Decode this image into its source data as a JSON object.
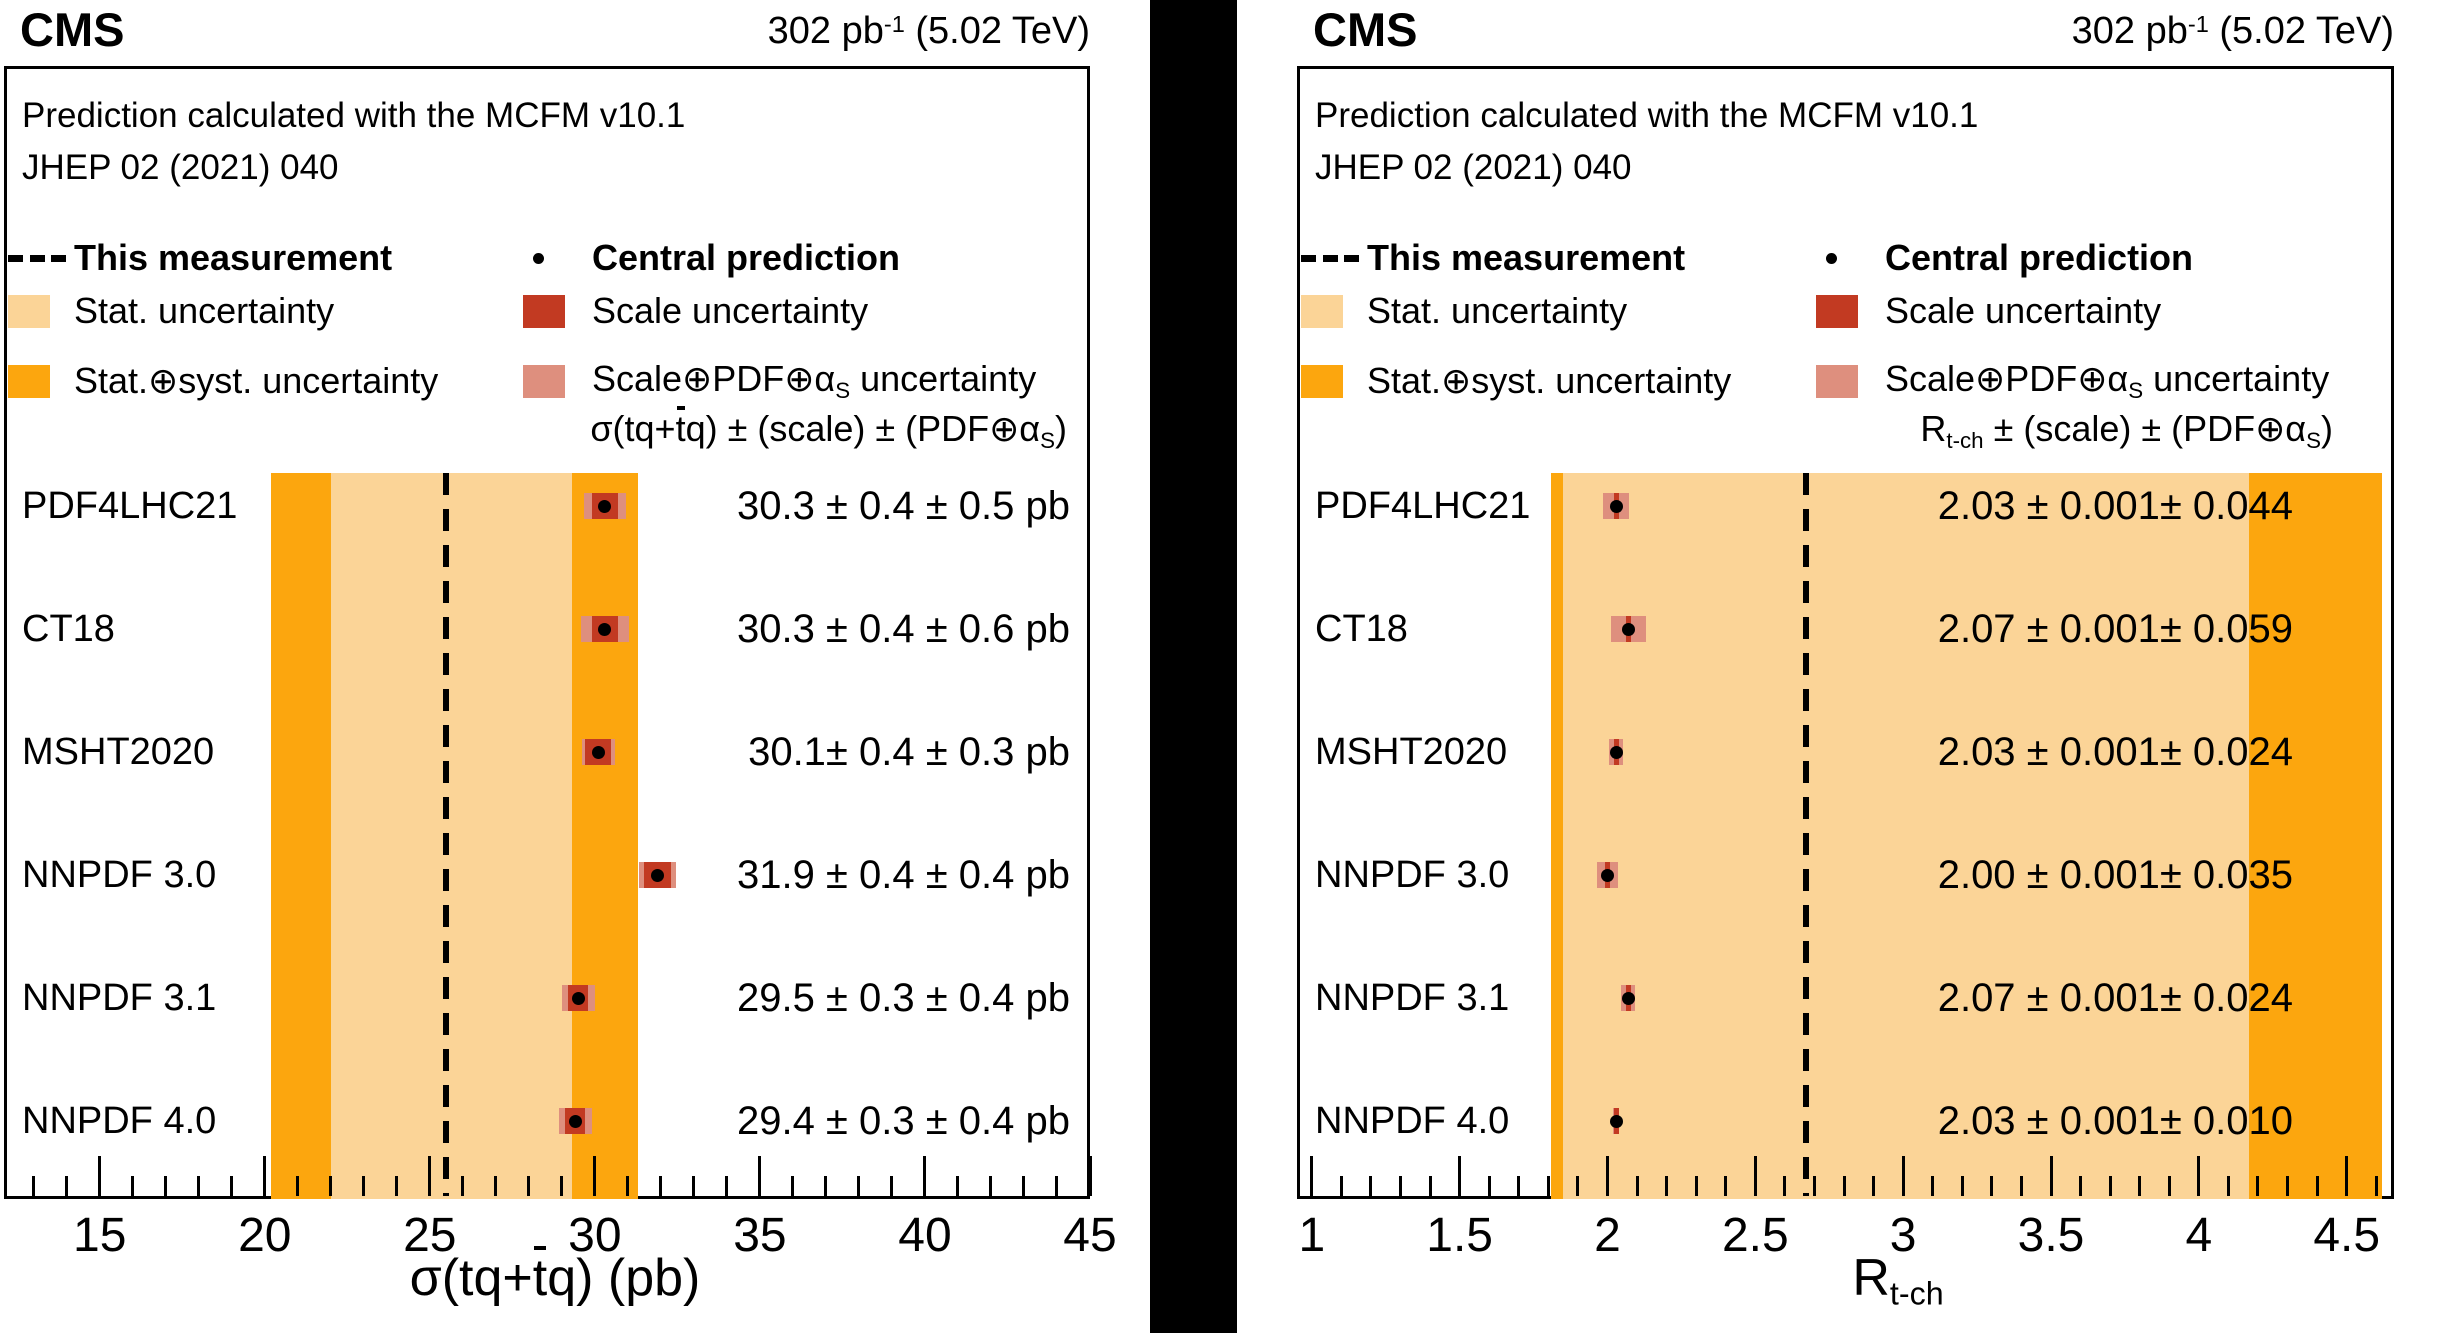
{
  "chart_data": [
    {
      "type": "scatter",
      "panel": "cross-section",
      "cms": "CMS",
      "lumi_parts": [
        {
          "text": "302 pb"
        },
        {
          "text": "-1",
          "style": "sup"
        },
        {
          "text": " (5.02 TeV)"
        }
      ],
      "info_lines": [
        "Prediction calculated with the MCFM v10.1",
        "JHEP 02 (2021) 040"
      ],
      "formula_parts": [
        {
          "text": "σ(tq+"
        },
        {
          "text": "t",
          "style": "overbar"
        },
        {
          "text": "q) ± (scale) ± (PDF⊕α"
        },
        {
          "text": "S",
          "style": "sub"
        },
        {
          "text": ")"
        }
      ],
      "xlabel_parts": [
        {
          "text": "σ(tq+"
        },
        {
          "text": "t",
          "style": "overbar"
        },
        {
          "text": "q) (pb)"
        }
      ],
      "xlim": [
        12.1,
        45
      ],
      "x_major_ticks": [
        15,
        20,
        25,
        30,
        35,
        40,
        45
      ],
      "x_major_labels": [
        "15",
        "20",
        "25",
        "30",
        "35",
        "40",
        "45"
      ],
      "x_minor_step": 1,
      "categories": [
        "PDF4LHC21",
        "CT18",
        "MSHT2020",
        "NNPDF 3.0",
        "NNPDF 3.1",
        "NNPDF 4.0"
      ],
      "predictions": [
        30.3,
        30.3,
        30.1,
        31.9,
        29.5,
        29.4
      ],
      "scale_unc": [
        0.4,
        0.4,
        0.4,
        0.4,
        0.3,
        0.3
      ],
      "pdf_alphas_unc": [
        0.5,
        0.6,
        0.3,
        0.4,
        0.4,
        0.4
      ],
      "value_labels": [
        "30.3 ± 0.4 ± 0.5 pb",
        "30.3 ± 0.4 ± 0.6 pb",
        "30.1± 0.4 ± 0.3 pb",
        "31.9 ± 0.4 ± 0.4 pb",
        "29.5 ± 0.3 ± 0.4 pb",
        "29.4 ± 0.3 ± 0.4 pb"
      ],
      "measurement": {
        "central": 25.5,
        "stat_band": [
          22.0,
          29.3
        ],
        "total_band": [
          20.2,
          31.3
        ]
      }
    },
    {
      "type": "scatter",
      "panel": "ratio",
      "cms": "CMS",
      "lumi_parts": [
        {
          "text": "302 pb"
        },
        {
          "text": "-1",
          "style": "sup"
        },
        {
          "text": " (5.02 TeV)"
        }
      ],
      "info_lines": [
        "Prediction calculated with the MCFM v10.1",
        "JHEP 02 (2021) 040"
      ],
      "formula_parts": [
        {
          "text": "R"
        },
        {
          "text": "t-ch",
          "style": "sub"
        },
        {
          "text": " ± (scale) ± (PDF⊕α"
        },
        {
          "text": "S",
          "style": "sub"
        },
        {
          "text": ")"
        }
      ],
      "xlabel_parts": [
        {
          "text": "R"
        },
        {
          "text": "t-ch",
          "style": "sub"
        }
      ],
      "xlim": [
        0.95,
        4.66
      ],
      "x_major_ticks": [
        1,
        1.5,
        2,
        2.5,
        3,
        3.5,
        4,
        4.5
      ],
      "x_major_labels": [
        "1",
        "1.5",
        "2",
        "2.5",
        "3",
        "3.5",
        "4",
        "4.5"
      ],
      "x_minor_step": 0.1,
      "categories": [
        "PDF4LHC21",
        "CT18",
        "MSHT2020",
        "NNPDF 3.0",
        "NNPDF 3.1",
        "NNPDF 4.0"
      ],
      "predictions": [
        2.03,
        2.07,
        2.03,
        2.0,
        2.07,
        2.03
      ],
      "scale_unc": [
        0.001,
        0.001,
        0.001,
        0.001,
        0.001,
        0.001
      ],
      "pdf_alphas_unc": [
        0.044,
        0.059,
        0.024,
        0.035,
        0.024,
        0.01
      ],
      "value_labels": [
        "2.03 ± 0.001± 0.044",
        "2.07 ± 0.001± 0.059",
        "2.03 ± 0.001± 0.024",
        "2.00 ± 0.001± 0.035",
        "2.07 ± 0.001± 0.024",
        "2.03 ± 0.001± 0.010"
      ],
      "measurement": {
        "central": 2.67,
        "stat_band": [
          1.85,
          4.17
        ],
        "total_band": [
          1.81,
          4.62
        ]
      }
    }
  ],
  "legend": {
    "measurement_label": "This measurement",
    "stat_label": "Stat. uncertainty",
    "stat_syst_label": "Stat.⊕syst. uncertainty",
    "central_label": "Central prediction",
    "scale_label": "Scale uncertainty",
    "scale_pdf_parts": [
      {
        "text": "Scale⊕PDF⊕α"
      },
      {
        "text": "S",
        "style": "sub"
      },
      {
        "text": " uncertainty"
      }
    ]
  },
  "colors": {
    "stat_band": "#FBD497",
    "total_band": "#FCA60E",
    "scale_box": "#C23A22",
    "scale_pdf_box": "#DE8F7E",
    "marker_dot": "#000000",
    "measurement_line": "#000000"
  }
}
